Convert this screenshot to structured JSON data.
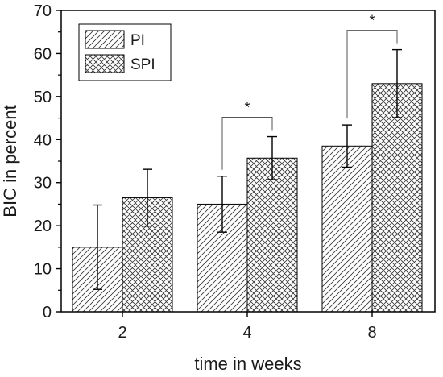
{
  "chart_data": {
    "type": "bar",
    "categories": [
      "2",
      "4",
      "8"
    ],
    "series": [
      {
        "name": "PI",
        "pattern": "diagonal-hatch",
        "values": [
          15.0,
          25.0,
          38.5
        ],
        "errors": [
          9.8,
          6.5,
          4.9
        ]
      },
      {
        "name": "SPI",
        "pattern": "cross-hatch",
        "values": [
          26.5,
          35.7,
          53.0
        ],
        "errors": [
          6.6,
          5.0,
          7.9
        ]
      }
    ],
    "xlabel": "time in weeks",
    "ylabel": "BIC in percent",
    "ylim": [
      0,
      70
    ],
    "yticks": [
      0,
      10,
      20,
      30,
      40,
      50,
      60,
      70
    ],
    "grid": false,
    "legend_position": "top-left",
    "significance": [
      {
        "category": "4",
        "label": "*"
      },
      {
        "category": "8",
        "label": "*"
      }
    ]
  }
}
